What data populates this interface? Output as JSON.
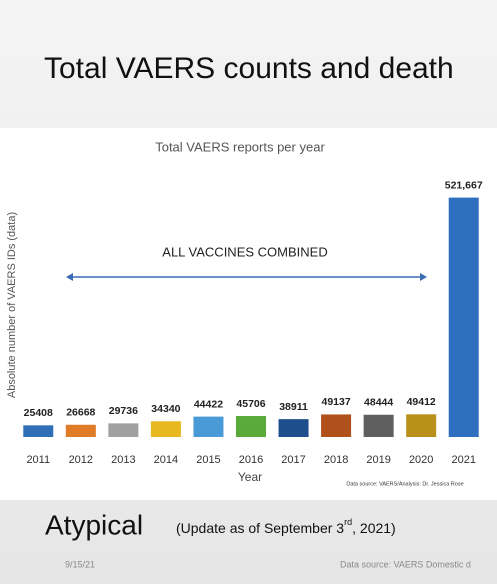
{
  "slide_title": "Total VAERS counts and death",
  "chart_data": {
    "type": "bar",
    "title": "Total VAERS reports per year",
    "y_label": "Absolute number of VAERS IDs (data)",
    "x_label": "Year",
    "annotation": "ALL VACCINES COMBINED",
    "source": "Data source: VAERS/Analysis: Dr. Jessica Rose",
    "categories": [
      "2011",
      "2012",
      "2013",
      "2014",
      "2015",
      "2016",
      "2017",
      "2018",
      "2019",
      "2020",
      "2021"
    ],
    "values": [
      25408,
      26668,
      29736,
      34340,
      44422,
      45706,
      38911,
      49137,
      48444,
      49412,
      521667
    ],
    "value_labels": [
      "25408",
      "26668",
      "29736",
      "34340",
      "44422",
      "45706",
      "38911",
      "49137",
      "48444",
      "49412",
      "521,667"
    ],
    "colors": [
      "#2f6fb8",
      "#e07b28",
      "#a0a0a0",
      "#e8b820",
      "#4a9ad8",
      "#5aaa3a",
      "#1f4e8c",
      "#b0501a",
      "#5f5f5f",
      "#b8901a",
      "#2f6fc0"
    ],
    "ylim": [
      0,
      560000
    ]
  },
  "footer": {
    "heading": "Atypical",
    "update": "(Update as of September 3",
    "update_sup": "rd",
    "update_end": ", 2021)",
    "date": "9/15/21",
    "source": "Data source: VAERS Domestic d"
  }
}
